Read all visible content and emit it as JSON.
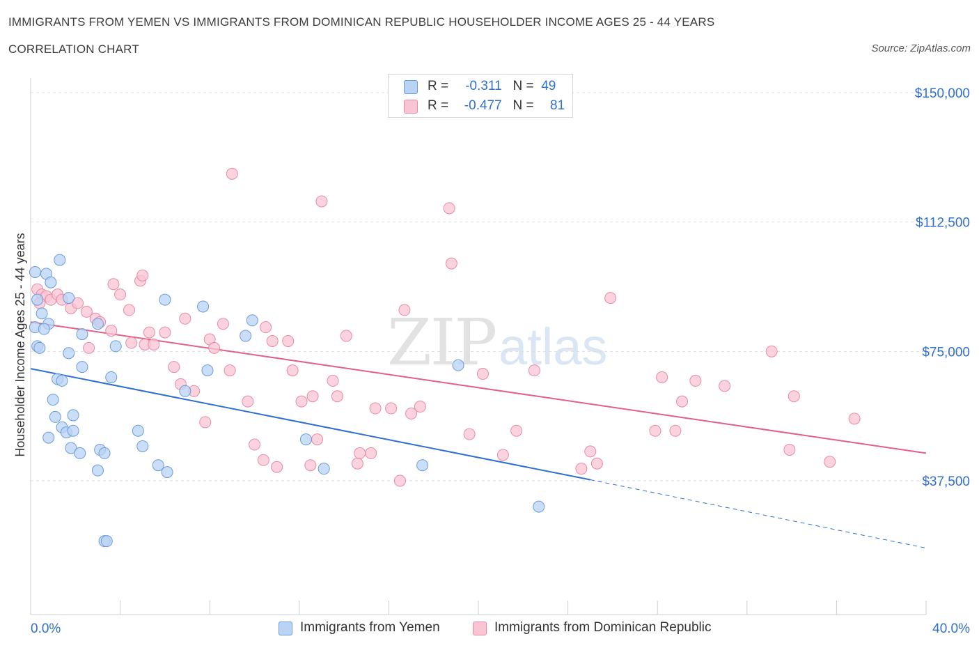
{
  "header": {
    "title": "IMMIGRANTS FROM YEMEN VS IMMIGRANTS FROM DOMINICAN REPUBLIC HOUSEHOLDER INCOME AGES 25 - 44 YEARS",
    "subtitle": "CORRELATION CHART",
    "source": "Source: ZipAtlas.com"
  },
  "watermark": {
    "zip": "ZIP",
    "atlas": "atlas"
  },
  "legend": {
    "r_label": "R =",
    "n_label": "N =",
    "rows": [
      {
        "r": "-0.311",
        "n": "49"
      },
      {
        "r": "-0.477",
        "n": "81"
      }
    ]
  },
  "colors": {
    "yemen_fill": "#b9d3f5",
    "yemen_stroke": "#6a9bdc",
    "yemen_line": "#2f6fd0",
    "dr_fill": "#f9c4d4",
    "dr_stroke": "#e88aa8",
    "dr_line": "#e0608a",
    "axis_label": "#2f6fd0",
    "grid": "#dddddd"
  },
  "chart_data": {
    "type": "scatter",
    "title": "IMMIGRANTS FROM YEMEN VS IMMIGRANTS FROM DOMINICAN REPUBLIC HOUSEHOLDER INCOME AGES 25 - 44 YEARS",
    "xlabel": "",
    "ylabel": "Householder Income Ages 25 - 44 years",
    "xlim": [
      0,
      40
    ],
    "ylim": [
      0,
      160000
    ],
    "x_tick_labels": [
      "0.0%",
      "40.0%"
    ],
    "y_ticks": [
      37500,
      75000,
      112500,
      150000
    ],
    "y_tick_labels": [
      "$37,500",
      "$75,000",
      "$112,500",
      "$150,000"
    ],
    "grid": true,
    "legend_position": "top-center",
    "series": [
      {
        "name": "Immigrants from Yemen",
        "points": [
          [
            0.2,
            98000
          ],
          [
            0.7,
            97500
          ],
          [
            1.3,
            101500
          ],
          [
            0.9,
            95000
          ],
          [
            0.3,
            90000
          ],
          [
            0.5,
            86000
          ],
          [
            0.8,
            83000
          ],
          [
            0.2,
            82000
          ],
          [
            0.6,
            81500
          ],
          [
            0.3,
            76500
          ],
          [
            0.4,
            76000
          ],
          [
            1.7,
            90500
          ],
          [
            2.3,
            80000
          ],
          [
            1.7,
            74500
          ],
          [
            2.3,
            70500
          ],
          [
            3.0,
            83000
          ],
          [
            3.8,
            76500
          ],
          [
            3.6,
            67500
          ],
          [
            1.2,
            67000
          ],
          [
            1.4,
            66500
          ],
          [
            1.0,
            61000
          ],
          [
            1.1,
            56000
          ],
          [
            1.9,
            56500
          ],
          [
            1.4,
            53000
          ],
          [
            1.6,
            51500
          ],
          [
            1.9,
            52000
          ],
          [
            0.8,
            50000
          ],
          [
            1.8,
            47000
          ],
          [
            2.2,
            45500
          ],
          [
            3.1,
            46500
          ],
          [
            3.3,
            45500
          ],
          [
            4.8,
            52000
          ],
          [
            5.0,
            47500
          ],
          [
            5.7,
            42000
          ],
          [
            6.1,
            40000
          ],
          [
            3.0,
            40500
          ],
          [
            6.0,
            90000
          ],
          [
            7.7,
            88000
          ],
          [
            6.9,
            63500
          ],
          [
            7.9,
            69500
          ],
          [
            9.6,
            79500
          ],
          [
            9.9,
            84000
          ],
          [
            12.3,
            49500
          ],
          [
            13.1,
            41000
          ],
          [
            17.5,
            42000
          ],
          [
            19.1,
            71000
          ],
          [
            22.7,
            30000
          ],
          [
            3.3,
            20000
          ],
          [
            3.4,
            20000
          ]
        ]
      },
      {
        "name": "Immigrants from Dominican Republic",
        "points": [
          [
            0.3,
            93000
          ],
          [
            0.5,
            91500
          ],
          [
            0.7,
            91000
          ],
          [
            0.9,
            90000
          ],
          [
            1.2,
            91500
          ],
          [
            1.4,
            90000
          ],
          [
            1.8,
            87500
          ],
          [
            2.1,
            89000
          ],
          [
            2.5,
            86500
          ],
          [
            2.9,
            84500
          ],
          [
            3.1,
            83500
          ],
          [
            3.6,
            81000
          ],
          [
            4.0,
            91500
          ],
          [
            4.4,
            87000
          ],
          [
            3.7,
            94500
          ],
          [
            4.9,
            95500
          ],
          [
            5.1,
            77000
          ],
          [
            5.3,
            80500
          ],
          [
            5.5,
            77000
          ],
          [
            5.0,
            97000
          ],
          [
            6.0,
            80500
          ],
          [
            6.4,
            70500
          ],
          [
            6.7,
            65500
          ],
          [
            6.9,
            84500
          ],
          [
            7.3,
            63500
          ],
          [
            7.8,
            54500
          ],
          [
            8.0,
            78500
          ],
          [
            8.2,
            76000
          ],
          [
            8.6,
            83000
          ],
          [
            8.9,
            69500
          ],
          [
            9.0,
            126500
          ],
          [
            9.7,
            60500
          ],
          [
            10.0,
            48000
          ],
          [
            10.5,
            82000
          ],
          [
            10.4,
            43500
          ],
          [
            10.8,
            78000
          ],
          [
            11.0,
            41500
          ],
          [
            11.5,
            78000
          ],
          [
            11.7,
            69500
          ],
          [
            12.1,
            60500
          ],
          [
            12.5,
            42000
          ],
          [
            12.6,
            62000
          ],
          [
            12.8,
            49500
          ],
          [
            13.0,
            118500
          ],
          [
            13.5,
            66500
          ],
          [
            13.7,
            62000
          ],
          [
            14.1,
            79500
          ],
          [
            14.6,
            42500
          ],
          [
            14.7,
            45500
          ],
          [
            15.2,
            45500
          ],
          [
            15.4,
            58500
          ],
          [
            16.1,
            58500
          ],
          [
            16.7,
            87000
          ],
          [
            16.5,
            37500
          ],
          [
            17.0,
            57000
          ],
          [
            17.4,
            59000
          ],
          [
            18.7,
            116500
          ],
          [
            18.8,
            100500
          ],
          [
            19.6,
            51000
          ],
          [
            20.2,
            68500
          ],
          [
            21.1,
            45000
          ],
          [
            21.7,
            52000
          ],
          [
            22.5,
            69500
          ],
          [
            24.6,
            41000
          ],
          [
            25.0,
            46000
          ],
          [
            25.3,
            42500
          ],
          [
            25.9,
            90500
          ],
          [
            27.9,
            52000
          ],
          [
            28.2,
            67500
          ],
          [
            28.8,
            52000
          ],
          [
            29.1,
            60500
          ],
          [
            29.7,
            66500
          ],
          [
            31.0,
            65000
          ],
          [
            33.1,
            75000
          ],
          [
            33.9,
            46500
          ],
          [
            34.1,
            62000
          ],
          [
            35.7,
            43000
          ],
          [
            36.8,
            55500
          ],
          [
            0.4,
            89000
          ],
          [
            2.6,
            76000
          ],
          [
            4.5,
            77500
          ]
        ]
      }
    ],
    "trend_lines": [
      {
        "series": "Immigrants from Yemen",
        "x_start": 0,
        "y_start": 70000,
        "x_solid_end": 25,
        "y_solid_end": 37800,
        "x_end": 40,
        "y_end": 18000
      },
      {
        "series": "Immigrants from Dominican Republic",
        "x_start": 0,
        "y_start": 83500,
        "x_end": 40,
        "y_end": 45500
      }
    ]
  }
}
